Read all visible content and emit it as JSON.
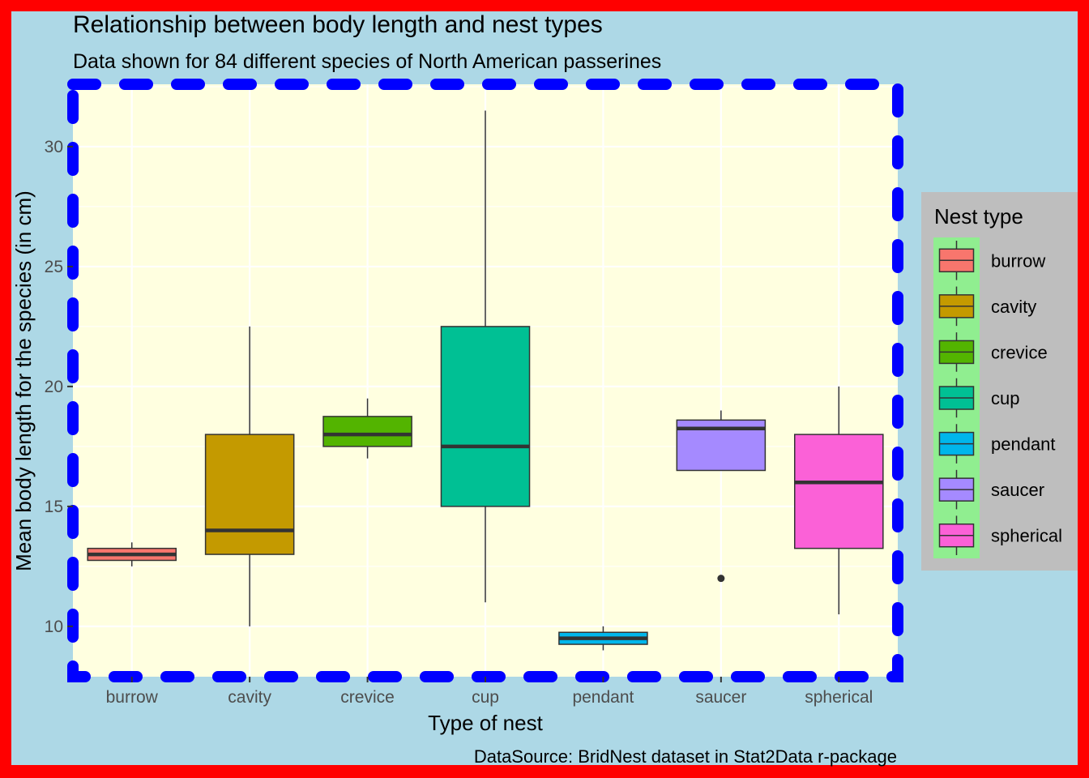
{
  "chart_data": {
    "type": "boxplot",
    "title": "Relationship between body length and nest types",
    "subtitle": "Data shown for 84 different species of North American passerines",
    "caption": "DataSource: BridNest dataset in Stat2Data r-package",
    "xlabel": "Type of nest",
    "ylabel": "Mean body length for the species (in cm)",
    "ylim": [
      7.9,
      32.6
    ],
    "yticks": [
      10,
      15,
      20,
      25,
      30
    ],
    "ytick_labels": [
      "10",
      "15",
      "20",
      "25",
      "30"
    ],
    "grid": true,
    "legend_title": "Nest type",
    "legend_position": "right",
    "categories": [
      "burrow",
      "cavity",
      "crevice",
      "cup",
      "pendant",
      "saucer",
      "spherical"
    ],
    "colors": [
      "#F8766D",
      "#C49A00",
      "#53B400",
      "#00C094",
      "#00B6EB",
      "#A58AFF",
      "#FB61D7"
    ],
    "boxes": [
      {
        "name": "burrow",
        "min": 12.5,
        "q1": 12.75,
        "median": 13.0,
        "q3": 13.25,
        "max": 13.5,
        "outliers": []
      },
      {
        "name": "cavity",
        "min": 10.0,
        "q1": 13.0,
        "median": 14.0,
        "q3": 18.0,
        "max": 22.5,
        "outliers": []
      },
      {
        "name": "crevice",
        "min": 17.0,
        "q1": 17.5,
        "median": 18.0,
        "q3": 18.75,
        "max": 19.5,
        "outliers": []
      },
      {
        "name": "cup",
        "min": 11.0,
        "q1": 15.0,
        "median": 17.5,
        "q3": 22.5,
        "max": 31.5,
        "outliers": []
      },
      {
        "name": "pendant",
        "min": 9.0,
        "q1": 9.25,
        "median": 9.5,
        "q3": 9.75,
        "max": 10.0,
        "outliers": []
      },
      {
        "name": "saucer",
        "min": 16.5,
        "q1": 16.5,
        "median": 18.25,
        "q3": 18.6,
        "max": 19.0,
        "outliers": [
          12.0
        ]
      },
      {
        "name": "spherical",
        "min": 10.5,
        "q1": 13.25,
        "median": 16.0,
        "q3": 18.0,
        "max": 20.0,
        "outliers": []
      }
    ]
  },
  "colors": {
    "outer_border": "#FF0000",
    "plot_background": "#ADD8E6",
    "panel_background": "#FFFFE0",
    "panel_border": "#0000FF",
    "legend_background": "#BEBEBE",
    "legend_key_background": "#90EE90"
  }
}
